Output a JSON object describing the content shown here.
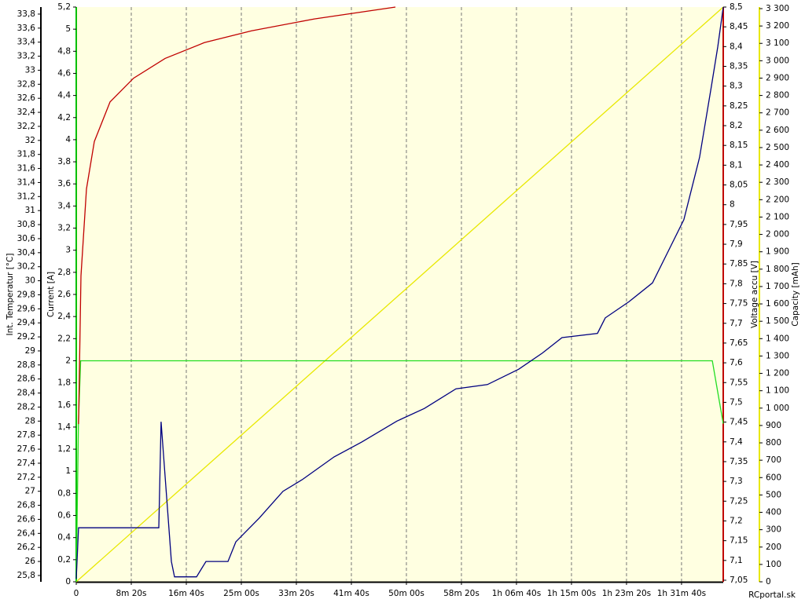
{
  "chart_data": {
    "type": "line",
    "xlim": [
      0,
      5879
    ],
    "xticks": [
      0,
      {
        "value": 500,
        "label": "8m 20s"
      },
      {
        "value": 1000,
        "label": "16m 40s"
      },
      {
        "value": 1500,
        "label": "25m 00s"
      },
      {
        "value": 2000,
        "label": "33m 20s"
      },
      {
        "value": 2500,
        "label": "41m 40s"
      },
      {
        "value": 3000,
        "label": "50m 00s"
      },
      {
        "value": 3500,
        "label": "58m 20s"
      },
      {
        "value": 4000,
        "label": "1h 06m 40s"
      },
      {
        "value": 4500,
        "label": "1h 15m 00s"
      },
      {
        "value": 5000,
        "label": "1h 23m 20s"
      },
      {
        "value": 5500,
        "label": "1h 31m 40s"
      }
    ],
    "grid": true,
    "footer": "RCportal.sk",
    "axes": [
      {
        "title": "Int. Temperatur [°C]",
        "color": "#000000",
        "side": "left",
        "lim": [
          25.71,
          33.9
        ],
        "ticks": [
          {
            "value": 25.8,
            "label": "25,8"
          },
          26,
          {
            "value": 26.2,
            "label": "26,2"
          },
          {
            "value": 26.4,
            "label": "26,4"
          },
          {
            "value": 26.6,
            "label": "26,6"
          },
          {
            "value": 26.8,
            "label": "26,8"
          },
          27,
          {
            "value": 27.2,
            "label": "27,2"
          },
          {
            "value": 27.4,
            "label": "27,4"
          },
          {
            "value": 27.6,
            "label": "27,6"
          },
          {
            "value": 27.8,
            "label": "27,8"
          },
          28,
          {
            "value": 28.2,
            "label": "28,2"
          },
          {
            "value": 28.4,
            "label": "28,4"
          },
          {
            "value": 28.6,
            "label": "28,6"
          },
          {
            "value": 28.8,
            "label": "28,8"
          },
          29,
          {
            "value": 29.2,
            "label": "29,2"
          },
          {
            "value": 29.4,
            "label": "29,4"
          },
          {
            "value": 29.6,
            "label": "29,6"
          },
          {
            "value": 29.8,
            "label": "29,8"
          },
          30,
          {
            "value": 30.2,
            "label": "30,2"
          },
          {
            "value": 30.4,
            "label": "30,4"
          },
          {
            "value": 30.6,
            "label": "30,6"
          },
          {
            "value": 30.8,
            "label": "30,8"
          },
          31,
          {
            "value": 31.2,
            "label": "31,2"
          },
          {
            "value": 31.4,
            "label": "31,4"
          },
          {
            "value": 31.6,
            "label": "31,6"
          },
          {
            "value": 31.8,
            "label": "31,8"
          },
          32,
          {
            "value": 32.2,
            "label": "32,2"
          },
          {
            "value": 32.4,
            "label": "32,4"
          },
          {
            "value": 32.6,
            "label": "32,6"
          },
          {
            "value": 32.8,
            "label": "32,8"
          },
          33,
          {
            "value": 33.2,
            "label": "33,2"
          },
          {
            "value": 33.4,
            "label": "33,4"
          },
          {
            "value": 33.6,
            "label": "33,6"
          },
          {
            "value": 33.8,
            "label": "33,8"
          }
        ]
      },
      {
        "title": "Current [A]",
        "color": "#00c000",
        "side": "left",
        "lim": [
          0,
          5.2
        ],
        "ticks": [
          0,
          {
            "value": 0.2,
            "label": "0,2"
          },
          {
            "value": 0.4,
            "label": "0,4"
          },
          {
            "value": 0.6,
            "label": "0,6"
          },
          {
            "value": 0.8,
            "label": "0,8"
          },
          1,
          {
            "value": 1.2,
            "label": "1,2"
          },
          {
            "value": 1.4,
            "label": "1,4"
          },
          {
            "value": 1.6,
            "label": "1,6"
          },
          {
            "value": 1.8,
            "label": "1,8"
          },
          2,
          {
            "value": 2.2,
            "label": "2,2"
          },
          {
            "value": 2.4,
            "label": "2,4"
          },
          {
            "value": 2.6,
            "label": "2,6"
          },
          {
            "value": 2.8,
            "label": "2,8"
          },
          3,
          {
            "value": 3.2,
            "label": "3,2"
          },
          {
            "value": 3.4,
            "label": "3,4"
          },
          {
            "value": 3.6,
            "label": "3,6"
          },
          {
            "value": 3.8,
            "label": "3,8"
          },
          4,
          {
            "value": 4.2,
            "label": "4,2"
          },
          {
            "value": 4.4,
            "label": "4,4"
          },
          {
            "value": 4.6,
            "label": "4,6"
          },
          {
            "value": 4.8,
            "label": "4,8"
          },
          5,
          {
            "value": 5.2,
            "label": "5,2"
          }
        ]
      },
      {
        "title": "Voltage accu [V]",
        "color": "#c00000",
        "side": "right",
        "lim": [
          7.046,
          8.5
        ],
        "ticks": [
          {
            "value": 7.05,
            "label": "7,05"
          },
          {
            "value": 7.1,
            "label": "7,1"
          },
          {
            "value": 7.15,
            "label": "7,15"
          },
          {
            "value": 7.2,
            "label": "7,2"
          },
          {
            "value": 7.25,
            "label": "7,25"
          },
          {
            "value": 7.3,
            "label": "7,3"
          },
          {
            "value": 7.35,
            "label": "7,35"
          },
          {
            "value": 7.4,
            "label": "7,4"
          },
          {
            "value": 7.45,
            "label": "7,45"
          },
          {
            "value": 7.5,
            "label": "7,5"
          },
          {
            "value": 7.55,
            "label": "7,55"
          },
          {
            "value": 7.6,
            "label": "7,6"
          },
          {
            "value": 7.65,
            "label": "7,65"
          },
          {
            "value": 7.7,
            "label": "7,7"
          },
          {
            "value": 7.75,
            "label": "7,75"
          },
          {
            "value": 7.8,
            "label": "7,8"
          },
          {
            "value": 7.85,
            "label": "7,85"
          },
          {
            "value": 7.9,
            "label": "7,9"
          },
          {
            "value": 7.95,
            "label": "7,95"
          },
          8,
          {
            "value": 8.05,
            "label": "8,05"
          },
          {
            "value": 8.1,
            "label": "8,1"
          },
          {
            "value": 8.15,
            "label": "8,15"
          },
          {
            "value": 8.2,
            "label": "8,2"
          },
          {
            "value": 8.25,
            "label": "8,25"
          },
          {
            "value": 8.3,
            "label": "8,3"
          },
          {
            "value": 8.35,
            "label": "8,35"
          },
          {
            "value": 8.4,
            "label": "8,4"
          },
          {
            "value": 8.45,
            "label": "8,45"
          },
          {
            "value": 8.5,
            "label": "8,5"
          }
        ]
      },
      {
        "title": "Capacity [mAh]",
        "color": "#e8e800",
        "side": "right",
        "lim": [
          0,
          3309
        ],
        "ticks": [
          0,
          100,
          200,
          300,
          400,
          500,
          600,
          700,
          800,
          900,
          {
            "value": 1000,
            "label": "1 000"
          },
          {
            "value": 1100,
            "label": "1 100"
          },
          {
            "value": 1200,
            "label": "1 200"
          },
          {
            "value": 1300,
            "label": "1 300"
          },
          {
            "value": 1400,
            "label": "1 400"
          },
          {
            "value": 1500,
            "label": "1 500"
          },
          {
            "value": 1600,
            "label": "1 600"
          },
          {
            "value": 1700,
            "label": "1 700"
          },
          {
            "value": 1800,
            "label": "1 800"
          },
          {
            "value": 1900,
            "label": "1 900"
          },
          {
            "value": 2000,
            "label": "2 000"
          },
          {
            "value": 2100,
            "label": "2 100"
          },
          {
            "value": 2200,
            "label": "2 200"
          },
          {
            "value": 2300,
            "label": "2 300"
          },
          {
            "value": 2400,
            "label": "2 400"
          },
          {
            "value": 2500,
            "label": "2 500"
          },
          {
            "value": 2600,
            "label": "2 600"
          },
          {
            "value": 2700,
            "label": "2 700"
          },
          {
            "value": 2800,
            "label": "2 800"
          },
          {
            "value": 2900,
            "label": "2 900"
          },
          {
            "value": 3000,
            "label": "3 000"
          },
          {
            "value": 3100,
            "label": "3 100"
          },
          {
            "value": 3200,
            "label": "3 200"
          },
          {
            "value": 3300,
            "label": "3 300"
          }
        ]
      }
    ],
    "series": [
      {
        "axis": 3,
        "color": "#e8e800",
        "x": [
          0,
          5879
        ],
        "values": [
          0,
          3309
        ]
      },
      {
        "axis": 1,
        "color": "#22dd22",
        "x": [
          0,
          20,
          40,
          5780,
          5879
        ],
        "values": [
          0,
          1.45,
          2.0,
          2.0,
          1.43
        ]
      },
      {
        "axis": 2,
        "color": "#c00000",
        "x": [
          21,
          43,
          93,
          164,
          307,
          521,
          807,
          1164,
          1593,
          2164,
          2900
        ],
        "values": [
          7.445,
          7.82,
          8.04,
          8.16,
          8.26,
          8.32,
          8.37,
          8.41,
          8.44,
          8.47,
          8.5
        ]
      },
      {
        "axis": 0,
        "color": "#000080",
        "x": [
          0,
          21,
          750,
          771,
          864,
          893,
          1093,
          1179,
          1379,
          1450,
          1664,
          1879,
          2057,
          2343,
          2593,
          2914,
          3164,
          3450,
          3736,
          4021,
          4236,
          4414,
          4736,
          4807,
          5021,
          5236,
          5379,
          5521,
          5664,
          5771,
          5829,
          5879
        ],
        "values": [
          25.75,
          26.48,
          26.48,
          27.99,
          26.0,
          25.78,
          25.78,
          26.0,
          26.0,
          26.28,
          26.62,
          27.0,
          27.17,
          27.49,
          27.7,
          28.0,
          28.18,
          28.46,
          28.52,
          28.74,
          28.97,
          29.19,
          29.25,
          29.47,
          29.7,
          29.97,
          30.42,
          30.87,
          31.76,
          32.77,
          33.33,
          33.9
        ]
      }
    ]
  }
}
